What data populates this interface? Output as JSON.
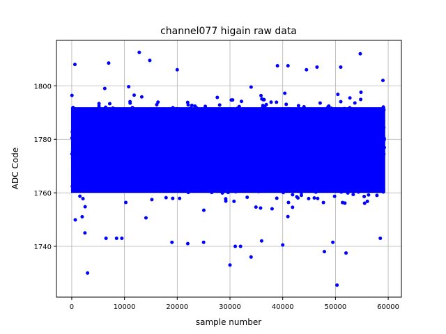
{
  "chart_data": {
    "type": "scatter",
    "title": "channel077 higain raw data",
    "xlabel": "sample number",
    "ylabel": "ADC Code",
    "xlim": [
      -2900,
      62500
    ],
    "ylim": [
      1721,
      1817
    ],
    "xticks": [
      0,
      10000,
      20000,
      30000,
      40000,
      50000,
      60000
    ],
    "yticks": [
      1740,
      1760,
      1780,
      1800
    ],
    "xtick_labels": [
      "0",
      "10000",
      "20000",
      "30000",
      "40000",
      "50000",
      "60000"
    ],
    "ytick_labels": [
      "1740",
      "1760",
      "1780",
      "1800"
    ],
    "grid": true,
    "marker_color": "#0000ff",
    "dense_band": {
      "x_range": [
        0,
        59300
      ],
      "y_range": [
        1758,
        1794
      ],
      "mean": 1776,
      "std": 7.5
    },
    "outliers": [
      [
        3000,
        1730
      ],
      [
        50300,
        1725.5
      ],
      [
        12800,
        1812.5
      ],
      [
        54700,
        1812
      ],
      [
        30000,
        1733
      ],
      [
        34000,
        1736
      ],
      [
        47900,
        1738
      ],
      [
        52000,
        1737.5
      ],
      [
        7000,
        1808.5
      ],
      [
        600,
        1808
      ],
      [
        14800,
        1809.5
      ],
      [
        31000,
        1740
      ],
      [
        32000,
        1740
      ],
      [
        2500,
        1745
      ],
      [
        6500,
        1743
      ],
      [
        8500,
        1743
      ],
      [
        9500,
        1743
      ],
      [
        19000,
        1741.5
      ],
      [
        22000,
        1741
      ],
      [
        25000,
        1741.5
      ],
      [
        40000,
        1740.5
      ],
      [
        49500,
        1741.5
      ],
      [
        58500,
        1743
      ],
      [
        36000,
        1742
      ],
      [
        20000,
        1806
      ],
      [
        39000,
        1807.5
      ],
      [
        41000,
        1807.5
      ],
      [
        44500,
        1806
      ],
      [
        46500,
        1807
      ],
      [
        51000,
        1807
      ],
      [
        59000,
        1802
      ]
    ]
  }
}
